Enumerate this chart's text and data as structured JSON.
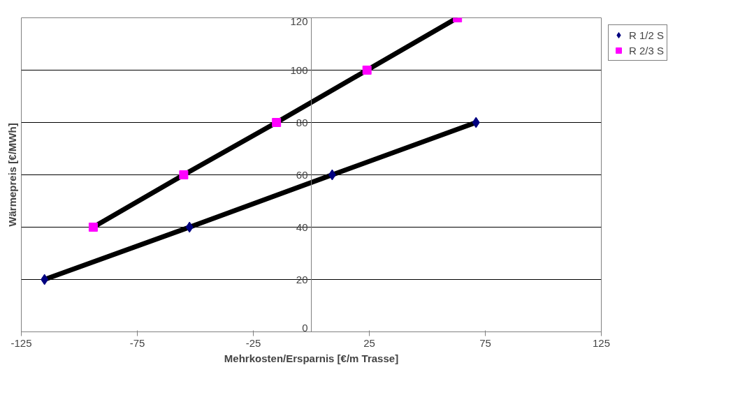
{
  "chart_data": {
    "type": "line",
    "xlabel": "Mehrkosten/Ersparnis [€/m Trasse]",
    "ylabel": "Wärmepreis [€/MWh]",
    "xlim": [
      -125,
      125
    ],
    "xticks": [
      -125,
      -75,
      -25,
      25,
      75,
      125
    ],
    "ylim": [
      0,
      120
    ],
    "yticks": [
      0,
      20,
      40,
      60,
      80,
      100,
      120
    ],
    "grid": "y",
    "legend": "right",
    "series": [
      {
        "name": "R 1/2 S",
        "color": "#000080",
        "marker": "diamond",
        "x": [
          -115,
          -52.5,
          9,
          71
        ],
        "values": [
          20,
          40,
          60,
          80
        ]
      },
      {
        "name": "R 2/3 S",
        "color": "#ff00ff",
        "marker": "square",
        "x": [
          -94,
          -55,
          -15,
          24,
          63
        ],
        "values": [
          40,
          60,
          80,
          100,
          120
        ]
      }
    ]
  }
}
